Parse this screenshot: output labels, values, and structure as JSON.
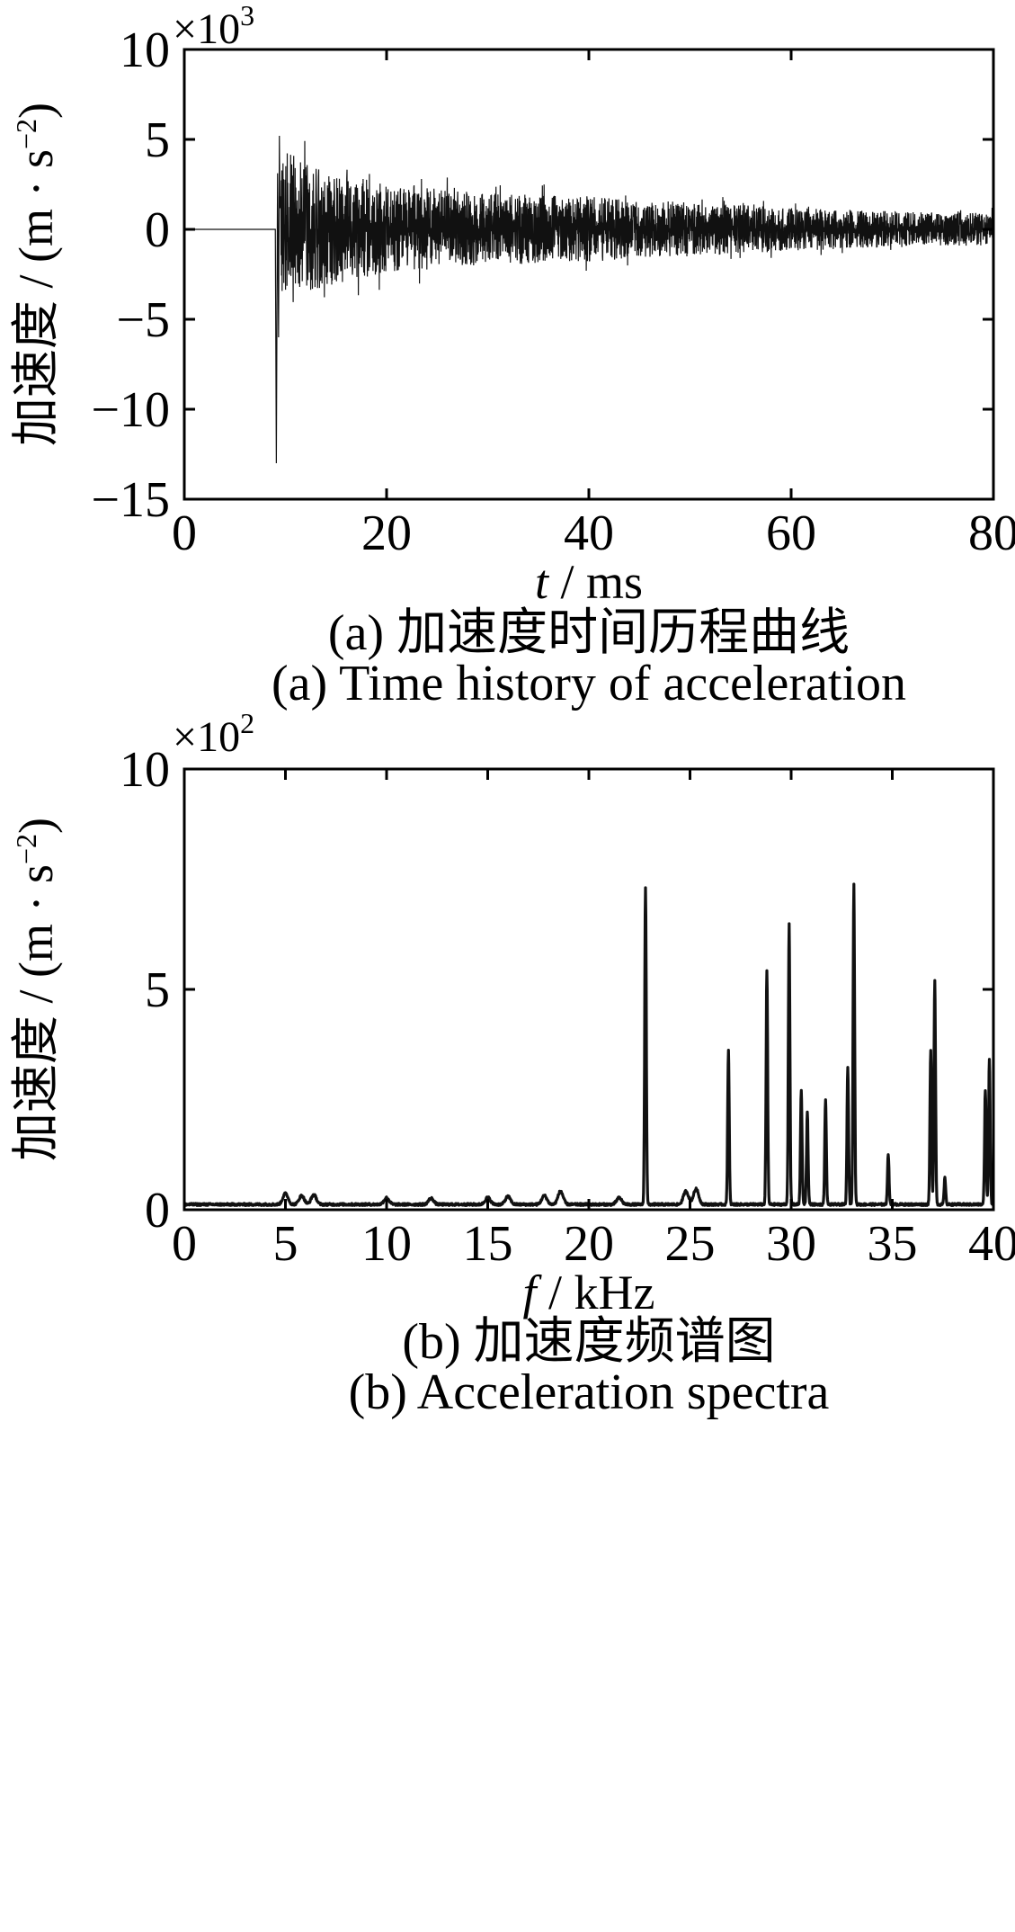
{
  "chart_data": [
    {
      "type": "line",
      "panel_id": "a",
      "ylabel": "加速度 / (m · s",
      "ylabel_exp": "−2",
      "ylabel_close": ")",
      "xlabel_var": "t",
      "xlabel_unit": " / ms",
      "multiplier_base": "×10",
      "multiplier_exp": "3",
      "xlim": [
        0,
        80
      ],
      "ylim": [
        -15,
        10
      ],
      "x_ticks": [
        0,
        20,
        40,
        60,
        80
      ],
      "x_tick_labels": [
        "0",
        "20",
        "40",
        "60",
        "80"
      ],
      "y_ticks": [
        10,
        5,
        0,
        -5,
        -10,
        -15
      ],
      "y_tick_labels": [
        "10",
        "5",
        "0",
        "−5",
        "−10",
        "−15"
      ],
      "caption_cn": "(a)  加速度时间历程曲线",
      "caption_en": "(a)  Time history of acceleration",
      "grid": false,
      "signal": {
        "quiet_until_ms": 9,
        "onset_ms": 9.1,
        "min_peak": -13,
        "max_peak": 5.2,
        "envelope": [
          {
            "t": 9.3,
            "amp": 4.5
          },
          {
            "t": 12,
            "amp": 3.8
          },
          {
            "t": 15,
            "amp": 3.0
          },
          {
            "t": 20,
            "amp": 2.5
          },
          {
            "t": 30,
            "amp": 2.0
          },
          {
            "t": 40,
            "amp": 1.8
          },
          {
            "t": 50,
            "amp": 1.5
          },
          {
            "t": 60,
            "amp": 1.2
          },
          {
            "t": 70,
            "amp": 1.0
          },
          {
            "t": 80,
            "amp": 0.9
          }
        ]
      }
    },
    {
      "type": "line",
      "panel_id": "b",
      "ylabel": "加速度 / (m · s",
      "ylabel_exp": "−2",
      "ylabel_close": ")",
      "xlabel_var": "f",
      "xlabel_unit": " / kHz",
      "multiplier_base": "×10",
      "multiplier_exp": "2",
      "xlim": [
        0,
        40
      ],
      "ylim": [
        0,
        10
      ],
      "x_ticks": [
        0,
        5,
        10,
        15,
        20,
        25,
        30,
        35,
        40
      ],
      "x_tick_labels": [
        "0",
        "5",
        "10",
        "15",
        "20",
        "25",
        "30",
        "35",
        "40"
      ],
      "y_ticks": [
        10,
        5,
        0
      ],
      "y_tick_labels": [
        "10",
        "5",
        "0"
      ],
      "caption_cn": "(b)  加速度频谱图",
      "caption_en": "(b)  Acceleration spectra",
      "grid": false,
      "baseline": 0.12,
      "small_bumps": [
        {
          "f": 5.0,
          "a": 0.25
        },
        {
          "f": 5.8,
          "a": 0.2
        },
        {
          "f": 6.4,
          "a": 0.22
        },
        {
          "f": 10.0,
          "a": 0.15
        },
        {
          "f": 12.2,
          "a": 0.14
        },
        {
          "f": 15.0,
          "a": 0.16
        },
        {
          "f": 16.0,
          "a": 0.18
        },
        {
          "f": 17.8,
          "a": 0.2
        },
        {
          "f": 18.6,
          "a": 0.3
        },
        {
          "f": 21.5,
          "a": 0.15
        },
        {
          "f": 24.8,
          "a": 0.3
        },
        {
          "f": 25.3,
          "a": 0.35
        }
      ],
      "peaks": [
        {
          "f": 22.8,
          "a": 7.2
        },
        {
          "f": 26.9,
          "a": 3.5
        },
        {
          "f": 28.8,
          "a": 5.3
        },
        {
          "f": 29.9,
          "a": 6.35
        },
        {
          "f": 30.5,
          "a": 2.6
        },
        {
          "f": 30.8,
          "a": 2.1
        },
        {
          "f": 31.7,
          "a": 2.4
        },
        {
          "f": 32.8,
          "a": 3.1
        },
        {
          "f": 33.1,
          "a": 7.25
        },
        {
          "f": 34.8,
          "a": 1.15
        },
        {
          "f": 36.9,
          "a": 3.5
        },
        {
          "f": 37.1,
          "a": 5.1
        },
        {
          "f": 37.6,
          "a": 0.6
        },
        {
          "f": 39.6,
          "a": 2.6
        },
        {
          "f": 39.8,
          "a": 3.3
        }
      ]
    }
  ]
}
